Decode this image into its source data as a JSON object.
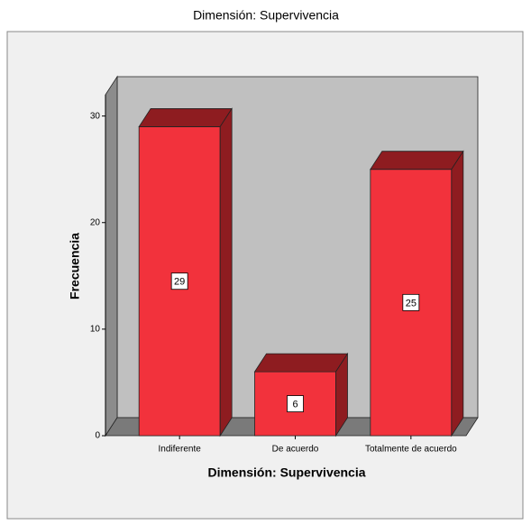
{
  "chart_data": {
    "type": "bar",
    "title": "Dimensión: Supervivencia",
    "x_label": "Dimensión: Supervivencia",
    "y_label": "Frecuencia",
    "categories": [
      "Indiferente",
      "De acuerdo",
      "Totalmente de acuerdo"
    ],
    "values": [
      29,
      6,
      25
    ],
    "color": "#f2323c",
    "ylim": [
      0,
      32
    ],
    "yticks": [
      0,
      10,
      20,
      30
    ]
  }
}
